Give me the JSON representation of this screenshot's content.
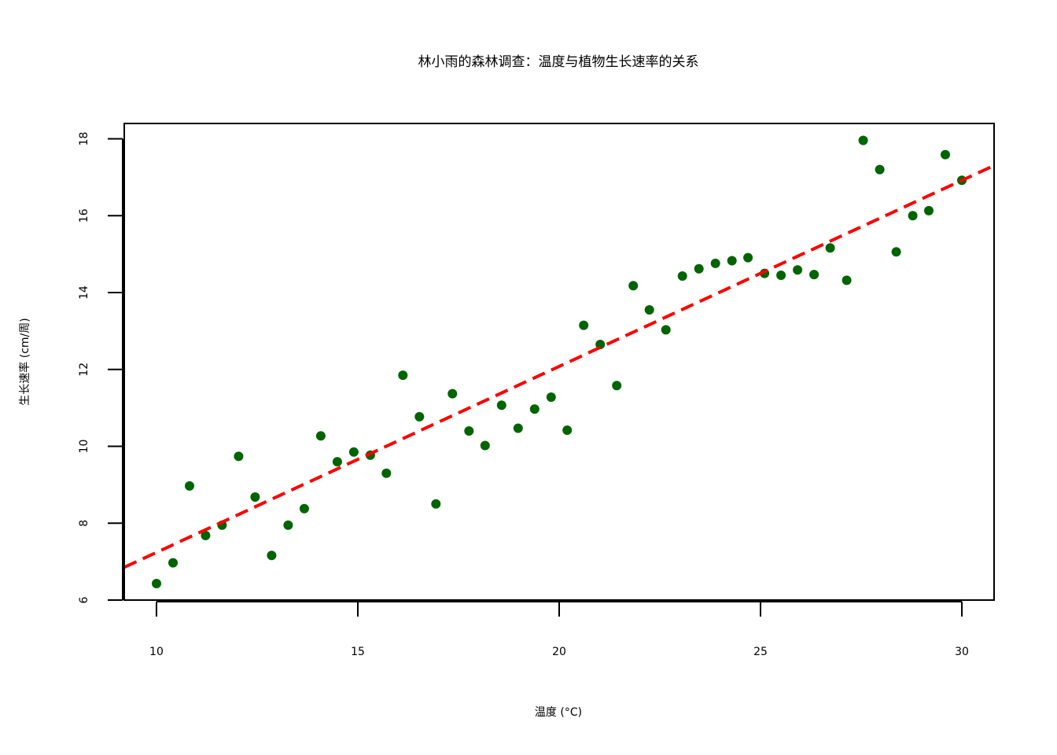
{
  "chart_data": {
    "type": "scatter",
    "title": "林小雨的森林调查：温度与植物生长速率的关系",
    "xlabel": "温度 (°C)",
    "ylabel": "生长速率 (cm/周)",
    "xlim": [
      9.2,
      30.8
    ],
    "ylim": [
      6.0,
      18.4
    ],
    "xticks": [
      10,
      15,
      20,
      25,
      30
    ],
    "yticks": [
      6,
      8,
      10,
      12,
      14,
      16,
      18
    ],
    "grid": false,
    "point_color": "#006400",
    "line_color": "#ff0000",
    "series": [
      {
        "x": [
          10.0,
          10.41,
          10.82,
          11.22,
          11.63,
          12.04,
          12.45,
          12.86,
          13.27,
          13.67,
          14.08,
          14.49,
          14.9,
          15.31,
          15.71,
          16.12,
          16.53,
          16.94,
          17.35,
          17.76,
          18.16,
          18.57,
          18.98,
          19.39,
          19.8,
          20.2,
          20.61,
          21.02,
          21.43,
          21.84,
          22.24,
          22.65,
          23.06,
          23.47,
          23.88,
          24.29,
          24.69,
          25.1,
          25.51,
          25.92,
          26.33,
          26.73,
          27.14,
          27.55,
          27.96,
          28.37,
          28.78,
          29.18,
          29.59,
          30.0
        ],
        "y": [
          6.43,
          6.97,
          8.97,
          7.68,
          7.95,
          9.74,
          8.68,
          7.16,
          7.95,
          8.38,
          10.27,
          9.6,
          9.85,
          9.77,
          9.3,
          11.85,
          10.77,
          8.5,
          11.37,
          10.4,
          10.02,
          11.07,
          10.47,
          10.97,
          11.28,
          10.42,
          13.15,
          12.65,
          11.58,
          14.18,
          13.55,
          13.03,
          14.43,
          14.62,
          14.76,
          14.83,
          14.91,
          14.5,
          14.45,
          14.59,
          14.47,
          15.16,
          14.32,
          17.96,
          17.2,
          15.06,
          16.0,
          16.13,
          17.59,
          16.92
        ]
      }
    ],
    "fit_line": {
      "intercept": 2.4,
      "slope": 0.484
    }
  }
}
